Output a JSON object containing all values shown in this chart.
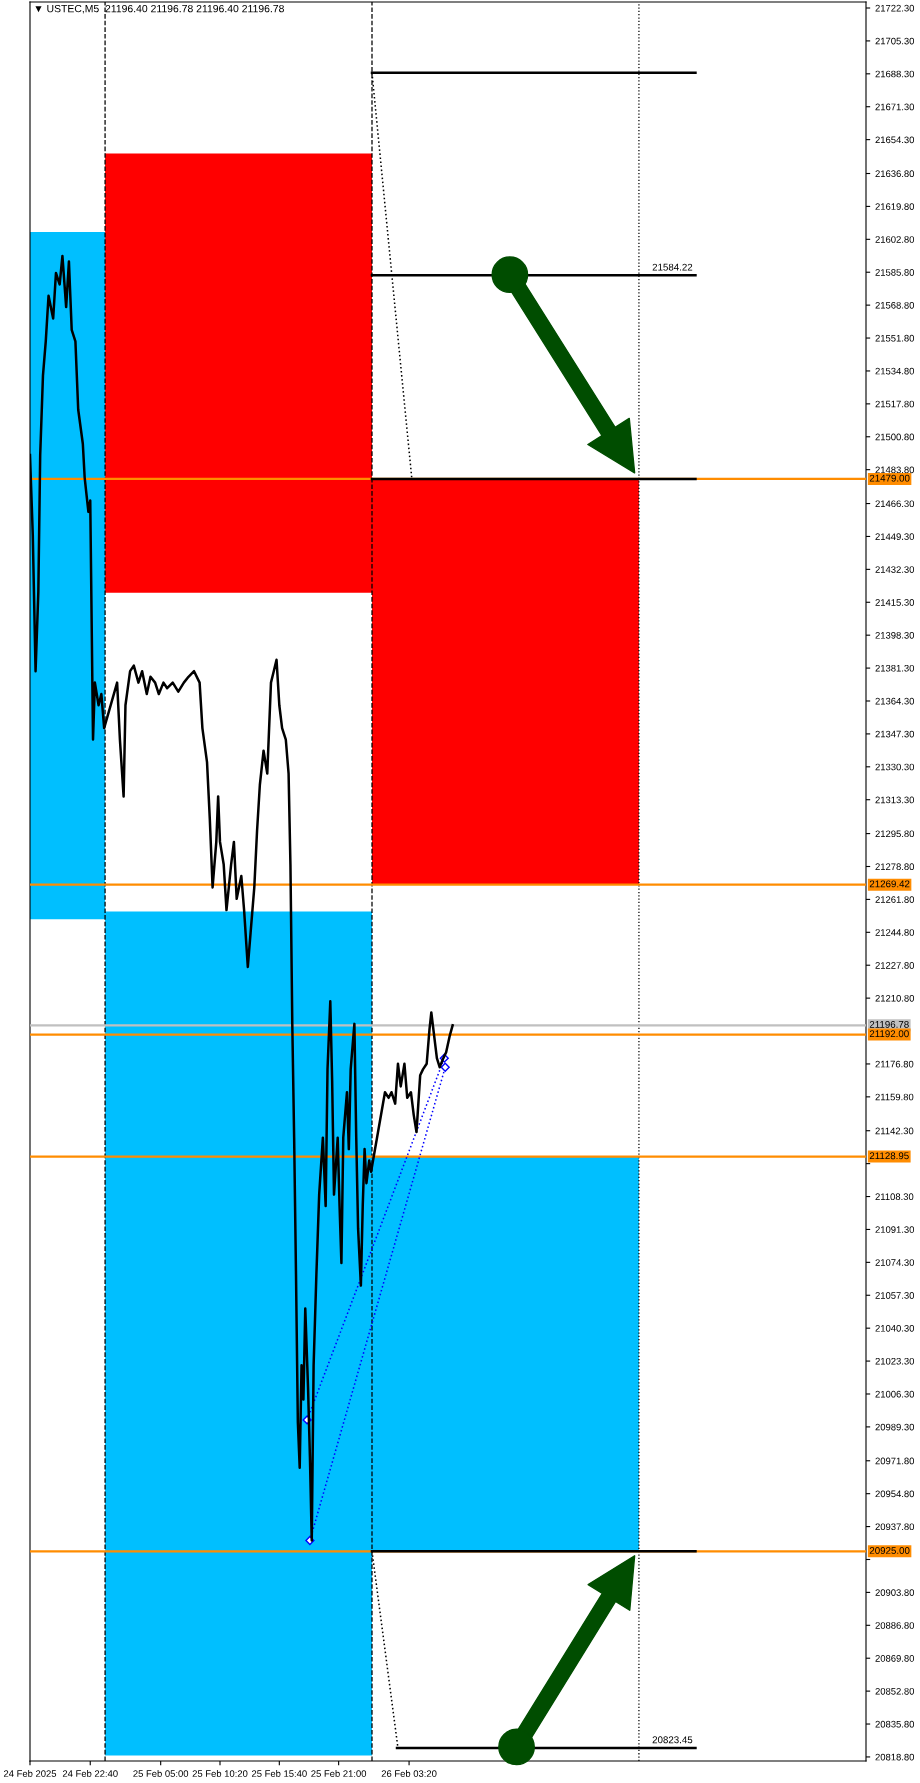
{
  "chart_data": {
    "type": "line",
    "title": "▼ USTEC,M5  21196.40 21196.78 21196.40 21196.78",
    "xlim": [
      "2025-02-24T17:15",
      "2025-02-27T20:25"
    ],
    "ylim": [
      20816.7,
      21725.4
    ],
    "xticks": [
      {
        "value": "2025-02-24T17:15",
        "label": "24 Feb 2025"
      },
      {
        "value": "2025-02-24T22:40",
        "label": "24 Feb 22:40"
      },
      {
        "value": "2025-02-25T05:00",
        "label": "25 Feb 05:00"
      },
      {
        "value": "2025-02-25T10:20",
        "label": "25 Feb 10:20"
      },
      {
        "value": "2025-02-25T15:40",
        "label": "25 Feb 15:40"
      },
      {
        "value": "2025-02-25T21:00",
        "label": "25 Feb 21:00"
      },
      {
        "value": "2025-02-26T03:20",
        "label": "26 Feb 03:20"
      }
    ],
    "yticks": [
      {
        "value": 21722.3,
        "label": "21722.30"
      },
      {
        "value": 21705.3,
        "label": "21705.30"
      },
      {
        "value": 21688.3,
        "label": "21688.30"
      },
      {
        "value": 21671.3,
        "label": "21671.30"
      },
      {
        "value": 21654.3,
        "label": "21654.30"
      },
      {
        "value": 21636.8,
        "label": "21636.80"
      },
      {
        "value": 21619.8,
        "label": "21619.80"
      },
      {
        "value": 21602.8,
        "label": "21602.80"
      },
      {
        "value": 21585.8,
        "label": "21585.80"
      },
      {
        "value": 21568.8,
        "label": "21568.80"
      },
      {
        "value": 21551.8,
        "label": "21551.80"
      },
      {
        "value": 21534.8,
        "label": "21534.80"
      },
      {
        "value": 21517.8,
        "label": "21517.80"
      },
      {
        "value": 21500.8,
        "label": "21500.80"
      },
      {
        "value": 21483.8,
        "label": "21483.80"
      },
      {
        "value": 21466.3,
        "label": "21466.30"
      },
      {
        "value": 21449.3,
        "label": "21449.30"
      },
      {
        "value": 21432.3,
        "label": "21432.30"
      },
      {
        "value": 21415.3,
        "label": "21415.30"
      },
      {
        "value": 21398.3,
        "label": "21398.30"
      },
      {
        "value": 21381.3,
        "label": "21381.30"
      },
      {
        "value": 21364.3,
        "label": "21364.30"
      },
      {
        "value": 21347.3,
        "label": "21347.30"
      },
      {
        "value": 21330.3,
        "label": "21330.30"
      },
      {
        "value": 21313.3,
        "label": "21313.30"
      },
      {
        "value": 21295.8,
        "label": "21295.80"
      },
      {
        "value": 21278.8,
        "label": "21278.80"
      },
      {
        "value": 21261.8,
        "label": "21261.80"
      },
      {
        "value": 21244.8,
        "label": "21244.80"
      },
      {
        "value": 21227.8,
        "label": "21227.80"
      },
      {
        "value": 21210.8,
        "label": "21210.80"
      },
      {
        "value": 21176.8,
        "label": "21176.80"
      },
      {
        "value": 21159.8,
        "label": "21159.80"
      },
      {
        "value": 21142.3,
        "label": "21142.30"
      },
      {
        "value": 21125.3,
        "label": null
      },
      {
        "value": 21108.3,
        "label": "21108.30"
      },
      {
        "value": 21091.3,
        "label": "21091.30"
      },
      {
        "value": 21074.3,
        "label": "21074.30"
      },
      {
        "value": 21057.3,
        "label": "21057.30"
      },
      {
        "value": 21040.3,
        "label": "21040.30"
      },
      {
        "value": 21023.3,
        "label": "21023.30"
      },
      {
        "value": 21006.3,
        "label": "21006.30"
      },
      {
        "value": 20989.3,
        "label": "20989.30"
      },
      {
        "value": 20971.8,
        "label": "20971.80"
      },
      {
        "value": 20954.8,
        "label": "20954.80"
      },
      {
        "value": 20937.8,
        "label": "20937.80"
      },
      {
        "value": 20920.8,
        "label": null
      },
      {
        "value": 20903.8,
        "label": "20903.80"
      },
      {
        "value": 20886.8,
        "label": "20886.80"
      },
      {
        "value": 20869.8,
        "label": "20869.80"
      },
      {
        "value": 20852.8,
        "label": "20852.80"
      },
      {
        "value": 20835.8,
        "label": "20835.80"
      },
      {
        "value": 20818.8,
        "label": "20818.80"
      }
    ],
    "series": [
      {
        "type": "bar",
        "color": "#00bfff",
        "x": [
          "2025-02-24T20:38",
          "2025-02-25T12:00",
          "2025-02-26T12:00"
        ],
        "base": [
          21251.5,
          20819.5,
          20925.0
        ],
        "values": [
          355.1,
          436.1,
          203.95
        ]
      },
      {
        "type": "bar",
        "color": "#ff0000",
        "x": [
          "2025-02-25T12:00",
          "2025-02-26T12:00"
        ],
        "base": [
          21420.2,
          21269.42
        ],
        "values": [
          226.9,
          209.58
        ]
      },
      {
        "type": "line",
        "color": "#000000",
        "line_style": "solid",
        "x": [
          "2025-02-26T00:00",
          "2025-02-27T05:05"
        ],
        "values": [
          21688.8,
          21688.8
        ]
      },
      {
        "type": "line",
        "color": "#000000",
        "line_style": "solid",
        "x": [
          "2025-02-26T00:00",
          "2025-02-27T05:05"
        ],
        "values": [
          21584.22,
          21584.22
        ]
      },
      {
        "type": "line",
        "color": "#000000",
        "line_style": "solid",
        "x": [
          "2025-02-26T00:00",
          "2025-02-27T05:05"
        ],
        "values": [
          21479.0,
          21479.0
        ]
      },
      {
        "type": "line",
        "color": "#000000",
        "line_style": "solid",
        "x": [
          "2025-02-26T00:00",
          "2025-02-27T05:05"
        ],
        "values": [
          20925.0,
          20925.0
        ]
      },
      {
        "type": "line",
        "color": "#000000",
        "line_style": "solid",
        "x": [
          "2025-02-26T02:15",
          "2025-02-27T05:05"
        ],
        "values": [
          20823.45,
          20823.45
        ]
      },
      {
        "type": "line",
        "color": "#000000",
        "line_style": "dotted",
        "x": [
          "2025-02-26T00:00",
          "2025-02-26T03:35"
        ],
        "values": [
          21688.8,
          21479.0
        ]
      },
      {
        "type": "line",
        "color": "#000000",
        "line_style": "dotted",
        "x": [
          "2025-02-26T00:00",
          "2025-02-26T02:20"
        ],
        "values": [
          20925.0,
          20823.45
        ]
      },
      {
        "type": "line",
        "color": "#0000ff",
        "line_style": "dotted",
        "marker": "diamond",
        "x": [
          "2025-02-25T18:10",
          "2025-02-26T06:30"
        ],
        "values": [
          20992.9,
          21179.8
        ]
      },
      {
        "type": "line",
        "color": "#0000ff",
        "line_style": "dotted",
        "marker": "diamond",
        "x": [
          "2025-02-25T18:25",
          "2025-02-26T06:35"
        ],
        "values": [
          20930.6,
          21175.1
        ]
      },
      {
        "color": "#000000",
        "line_style": "solid",
        "x": [
          "2025-02-24T17:15",
          "2025-02-24T17:30",
          "2025-02-24T17:45",
          "2025-02-24T18:00",
          "2025-02-24T18:10",
          "2025-02-24T18:25",
          "2025-02-24T18:40",
          "2025-02-24T18:55",
          "2025-02-24T19:20",
          "2025-02-24T19:35",
          "2025-02-24T19:55",
          "2025-02-24T20:10",
          "2025-02-24T20:30",
          "2025-02-24T20:45",
          "2025-02-24T21:00",
          "2025-02-24T21:20",
          "2025-02-24T21:35",
          "2025-02-24T22:00",
          "2025-02-24T22:10",
          "2025-02-24T22:30",
          "2025-02-24T22:40",
          "2025-02-24T22:55",
          "2025-02-24T23:05",
          "2025-02-24T23:25",
          "2025-02-24T23:40",
          "2025-02-24T23:55",
          "2025-02-25T01:05",
          "2025-02-25T01:20",
          "2025-02-25T01:40",
          "2025-02-25T01:50",
          "2025-02-25T02:15",
          "2025-02-25T02:35",
          "2025-02-25T03:00",
          "2025-02-25T03:20",
          "2025-02-25T03:45",
          "2025-02-25T04:05",
          "2025-02-25T04:30",
          "2025-02-25T04:50",
          "2025-02-25T05:15",
          "2025-02-25T05:35",
          "2025-02-25T06:05",
          "2025-02-25T06:35",
          "2025-02-25T07:05",
          "2025-02-25T07:30",
          "2025-02-25T08:00",
          "2025-02-25T08:30",
          "2025-02-25T08:45",
          "2025-02-25T09:10",
          "2025-02-25T09:25",
          "2025-02-25T09:40",
          "2025-02-25T10:00",
          "2025-02-25T10:10",
          "2025-02-25T10:20",
          "2025-02-25T10:40",
          "2025-02-25T10:55",
          "2025-02-25T11:20",
          "2025-02-25T11:35",
          "2025-02-25T11:50",
          "2025-02-25T12:15",
          "2025-02-25T12:30",
          "2025-02-25T12:50",
          "2025-02-25T13:05",
          "2025-02-25T13:25",
          "2025-02-25T13:40",
          "2025-02-25T13:55",
          "2025-02-25T14:15",
          "2025-02-25T14:35",
          "2025-02-25T14:55",
          "2025-02-25T15:10",
          "2025-02-25T15:25",
          "2025-02-25T15:40",
          "2025-02-25T15:55",
          "2025-02-25T16:15",
          "2025-02-25T16:30",
          "2025-02-25T16:40",
          "2025-02-25T16:50",
          "2025-02-25T17:00",
          "2025-02-25T17:10",
          "2025-02-25T17:20",
          "2025-02-25T17:30",
          "2025-02-25T17:40",
          "2025-02-25T17:50",
          "2025-02-25T18:00",
          "2025-02-25T18:15",
          "2025-02-25T18:25",
          "2025-02-25T18:35",
          "2025-02-25T18:45",
          "2025-02-25T19:00",
          "2025-02-25T19:15",
          "2025-02-25T19:35",
          "2025-02-25T19:50",
          "2025-02-25T20:00",
          "2025-02-25T20:15",
          "2025-02-25T20:25",
          "2025-02-25T20:35",
          "2025-02-25T20:55",
          "2025-02-25T21:05",
          "2025-02-25T21:15",
          "2025-02-25T21:25",
          "2025-02-25T21:45",
          "2025-02-25T21:55",
          "2025-02-25T22:05",
          "2025-02-25T22:25",
          "2025-02-25T22:35",
          "2025-02-25T22:45",
          "2025-02-25T23:00",
          "2025-02-25T23:10",
          "2025-02-25T23:20",
          "2025-02-25T23:30",
          "2025-02-25T23:45",
          "2025-02-25T23:55",
          "2025-02-26T01:10",
          "2025-02-26T01:30",
          "2025-02-26T01:45",
          "2025-02-26T02:05",
          "2025-02-26T02:20",
          "2025-02-26T02:35",
          "2025-02-26T02:55",
          "2025-02-26T03:10",
          "2025-02-26T03:30",
          "2025-02-26T03:45",
          "2025-02-26T04:00",
          "2025-02-26T04:20",
          "2025-02-26T04:35",
          "2025-02-26T04:55",
          "2025-02-26T05:10",
          "2025-02-26T05:20",
          "2025-02-26T05:35",
          "2025-02-26T05:50",
          "2025-02-26T06:05",
          "2025-02-26T06:25",
          "2025-02-26T06:40",
          "2025-02-26T07:00",
          "2025-02-26T07:15"
        ],
        "values": [
          21491.4,
          21450.2,
          21379.7,
          21420.8,
          21491.4,
          21532.5,
          21550.1,
          21573.6,
          21561.9,
          21585.4,
          21579.5,
          21594.2,
          21567.8,
          21591.3,
          21556.0,
          21550.1,
          21514.9,
          21497.2,
          21479.6,
          21462.0,
          21467.9,
          21344.4,
          21373.8,
          21362.1,
          21367.9,
          21350.3,
          21373.8,
          21344.4,
          21315.0,
          21362.1,
          21379.7,
          21382.6,
          21373.8,
          21379.7,
          21367.9,
          21376.8,
          21373.8,
          21367.9,
          21373.8,
          21370.9,
          21373.8,
          21369.1,
          21373.8,
          21376.8,
          21379.7,
          21373.8,
          21350.3,
          21332.7,
          21303.3,
          21268.0,
          21291.5,
          21315.0,
          21291.5,
          21279.8,
          21256.3,
          21279.8,
          21291.5,
          21262.1,
          21273.9,
          21256.3,
          21226.9,
          21244.5,
          21268.0,
          21297.4,
          21320.9,
          21338.6,
          21326.8,
          21373.8,
          21379.7,
          21385.6,
          21362.1,
          21350.3,
          21344.4,
          21326.8,
          21279.8,
          21197.5,
          21138.7,
          21068.2,
          20991.7,
          20968.2,
          21021.1,
          21003.5,
          21050.5,
          21009.4,
          20974.1,
          20930.6,
          21021.1,
          21068.2,
          21109.3,
          21138.7,
          21103.4,
          21174.0,
          21209.2,
          21168.1,
          21109.3,
          21138.7,
          21103.4,
          21074.0,
          21138.7,
          21162.2,
          21132.8,
          21174.0,
          21197.5,
          21138.7,
          21091.7,
          21062.3,
          21103.4,
          21132.8,
          21115.2,
          21126.9,
          21121.1,
          21162.2,
          21159.3,
          21162.2,
          21156.3,
          21176.9,
          21165.2,
          21176.9,
          21159.3,
          21162.2,
          21150.5,
          21141.6,
          21171.0,
          21174.0,
          21176.9,
          21194.5,
          21203.4,
          21191.6,
          21179.8,
          21175.1,
          21179.8,
          21182.8,
          21191.6,
          21196.78
        ]
      }
    ],
    "ref_lines": [
      {
        "axis": "x",
        "value": "2025-02-25T00:00",
        "color": "#000000",
        "line_style": "dashed"
      },
      {
        "axis": "x",
        "value": "2025-02-26T00:00",
        "color": "#000000",
        "line_style": "dashed"
      },
      {
        "axis": "x",
        "value": "2025-02-27T00:00",
        "color": "#000000",
        "line_style": "dotted"
      },
      {
        "axis": "y",
        "value": 21479.0,
        "label": "21479.00",
        "color": "#ff8c00",
        "line_style": "solid"
      },
      {
        "axis": "y",
        "value": 21269.42,
        "label": "21269.42",
        "color": "#ff8c00",
        "line_style": "solid"
      },
      {
        "axis": "y",
        "value": 21196.78,
        "label": "21196.78",
        "color": "#c0c0c0",
        "line_style": "solid"
      },
      {
        "axis": "y",
        "value": 21192.0,
        "label": "21192.00",
        "color": "#ff8c00",
        "line_style": "solid"
      },
      {
        "axis": "y",
        "value": 21128.95,
        "label": "21128.95",
        "color": "#ff8c00",
        "line_style": "solid"
      },
      {
        "axis": "y",
        "value": 20925.0,
        "label": "20925.00",
        "color": "#ff8c00",
        "line_style": "solid"
      }
    ],
    "annotations": [
      {
        "text": "21584.22",
        "x": "2025-02-27T05:05",
        "y": 21584.22
      },
      {
        "text": "20823.45",
        "x": "2025-02-27T05:05",
        "y": 20823.45
      }
    ]
  }
}
